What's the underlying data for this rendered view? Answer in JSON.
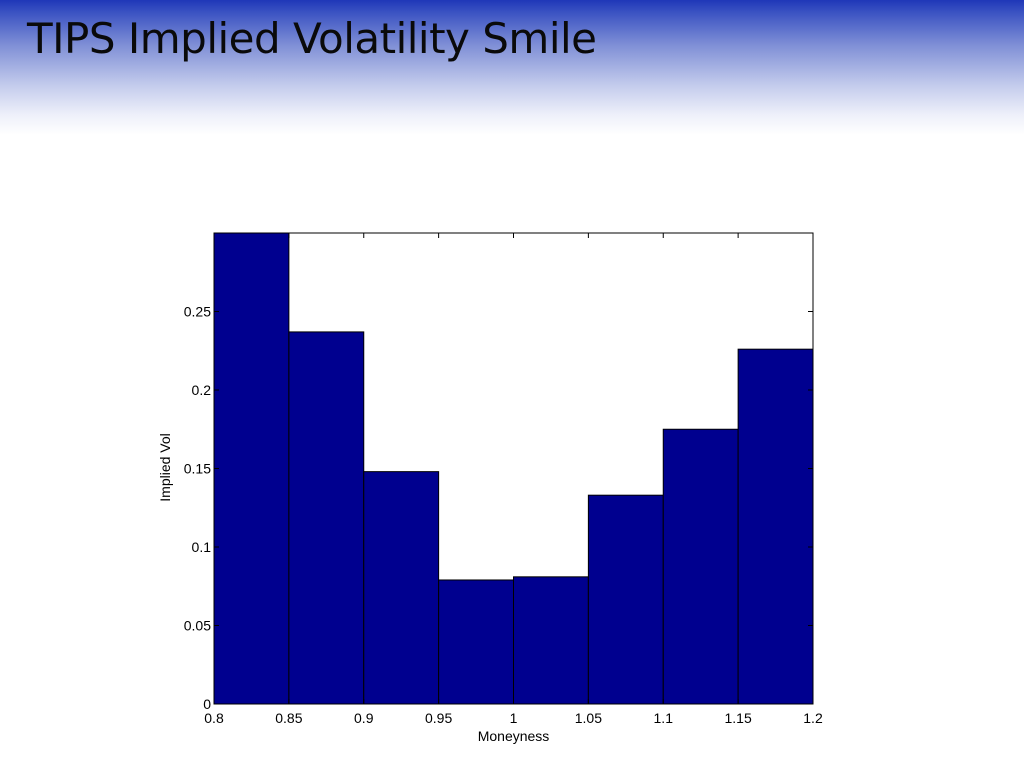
{
  "slide": {
    "title": "TIPS Implied Volatility Smile"
  },
  "chart_data": {
    "type": "bar",
    "title": "",
    "xlabel": "Moneyness",
    "ylabel": "Implied Vol",
    "bin_edges": [
      0.8,
      0.85,
      0.9,
      0.95,
      1,
      1.05,
      1.1,
      1.15,
      1.2
    ],
    "values": [
      0.3,
      0.237,
      0.148,
      0.079,
      0.081,
      0.133,
      0.175,
      0.226
    ],
    "xlim": [
      0.8,
      1.2
    ],
    "ylim": [
      0,
      0.3
    ],
    "xticks": [
      "0.8",
      "0.85",
      "0.9",
      "0.95",
      "1",
      "1.05",
      "1.1",
      "1.15",
      "1.2"
    ],
    "yticks": [
      "0",
      "0.05",
      "0.1",
      "0.15",
      "0.2",
      "0.25"
    ],
    "ytick_values": [
      0,
      0.05,
      0.1,
      0.15,
      0.2,
      0.25
    ],
    "bar_color": "#00008f",
    "grid": false
  }
}
